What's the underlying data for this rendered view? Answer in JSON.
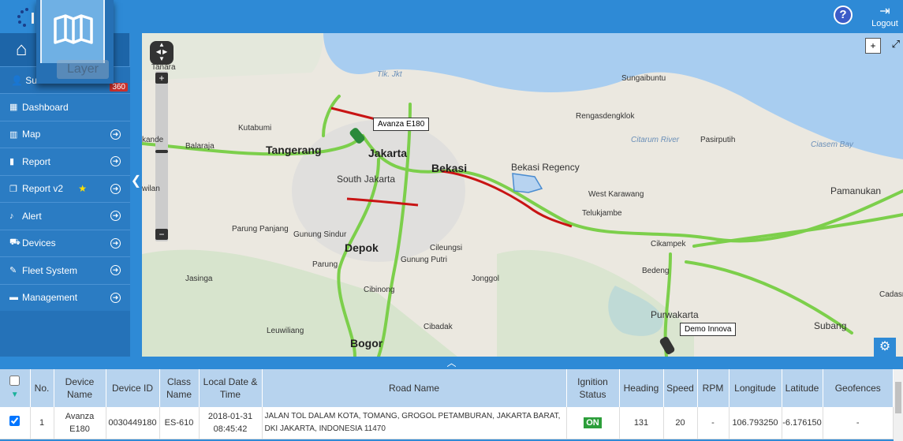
{
  "topbar": {
    "help_label": "?",
    "logout_label": "Logout"
  },
  "layer_popup": {
    "tooltip": "Layer"
  },
  "sidebar": {
    "user_label": "Su",
    "notification_count": "360",
    "items": [
      {
        "label": "Dashboard",
        "icon": "grid-icon",
        "arrow": false
      },
      {
        "label": "Map",
        "icon": "map-icon",
        "arrow": true
      },
      {
        "label": "Report",
        "icon": "file-icon",
        "arrow": true
      },
      {
        "label": "Report v2",
        "icon": "copy-icon",
        "arrow": true,
        "star": true
      },
      {
        "label": "Alert",
        "icon": "bell-icon",
        "arrow": true
      },
      {
        "label": "Devices",
        "icon": "car-icon",
        "arrow": true
      },
      {
        "label": "Fleet System",
        "icon": "wrench-icon",
        "arrow": true
      },
      {
        "label": "Management",
        "icon": "briefcase-icon",
        "arrow": true
      }
    ]
  },
  "map": {
    "vehicles": [
      "Avanza E180",
      "Demo Innova"
    ],
    "places": {
      "tangerang": "Tangerang",
      "jakarta": "Jakarta",
      "bekasi": "Bekasi",
      "south_jakarta": "South Jakarta",
      "depok": "Depok",
      "bogor": "Bogor",
      "bekasi_regency": "Bekasi Regency",
      "purwakarta": "Purwakarta",
      "subang": "Subang",
      "pamanukan": "Pamanukan",
      "tanara": "Tanara",
      "tlk_jkt": "Tlk. Jkt",
      "sungaibuntu": "Sungaibuntu",
      "kutabumi": "Kutabumi",
      "balaraja": "Balaraja",
      "rengasdengklok": "Rengasdengklok",
      "citarum": "Citarum River",
      "pasirputih": "Pasirputih",
      "ciasem": "Ciasem Bay",
      "west_karawang": "West Karawang",
      "telukjambe": "Telukjambe",
      "cikampek": "Cikampek",
      "bedeng": "Bedeng",
      "cadasn": "Cadasn",
      "parung_panjang": "Parung Panjang",
      "gunung_sindur": "Gunung Sindur",
      "parung": "Parung",
      "gunung_putri": "Gunung Putri",
      "cileungsi": "Cileungsi",
      "jonggol": "Jonggol",
      "cibinong": "Cibinong",
      "cibadak": "Cibadak",
      "jasinga": "Jasinga",
      "leuwiliang": "Leuwiliang",
      "kande": "kande",
      "wilan": "wilan"
    }
  },
  "table": {
    "headers": [
      "",
      "No.",
      "Device Name",
      "Device ID",
      "Class Name",
      "Local Date & Time",
      "Road Name",
      "Ignition Status",
      "Heading",
      "Speed",
      "RPM",
      "Longitude",
      "Latitude",
      "Geofences"
    ],
    "rows": [
      {
        "checked": true,
        "no": "1",
        "device_name": "Avanza E180",
        "device_id": "0030449180",
        "class_name": "ES-610",
        "datetime": "2018-01-31 08:45:42",
        "road": "JALAN TOL DALAM KOTA, TOMANG, GROGOL PETAMBURAN, JAKARTA BARAT, DKI JAKARTA, INDONESIA 11470",
        "ignition": "ON",
        "heading": "131",
        "speed": "20",
        "rpm": "-",
        "longitude": "106.793250",
        "latitude": "-6.176150",
        "geofences": "-"
      }
    ]
  },
  "colors": {
    "primary": "#2e8ad6",
    "sidebar": "#2b7cc3",
    "ignition_on": "#2c9e3a",
    "badge": "#c9302c",
    "traffic_ok": "#7ac943",
    "traffic_jam": "#cc1111"
  }
}
